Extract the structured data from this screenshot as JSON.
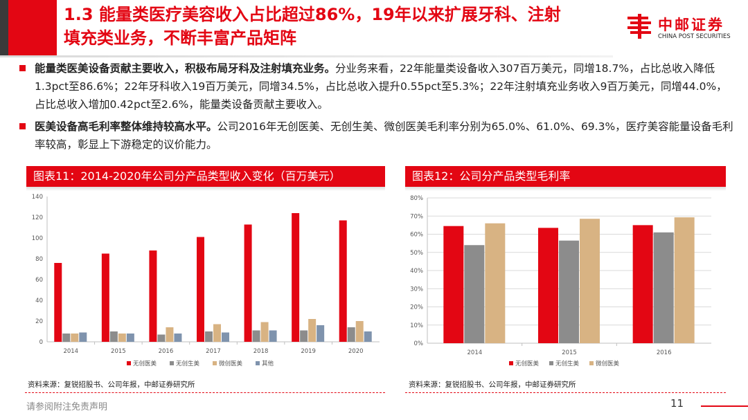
{
  "header": {
    "title_line1": "1.3 能量类医疗美容收入占比超过86%，19年以来扩展牙科、注射",
    "title_line2": "填充类业务，不断丰富产品矩阵",
    "logo_cn": "中邮证券",
    "logo_en": "CHINA POST SECURITIES",
    "accent_color": "#e30613"
  },
  "bullets": [
    {
      "bold": "能量类医美设备贡献主要收入，积极布局牙科及注射填充业务。",
      "text": "分业务来看，22年能量类设备收入307百万美元，同增18.7%，占比总收入降低1.3pct至86.6%；22年牙科收入19百万美元，同增34.5%，占比总收入提升0.55pct至5.3%；22年注射填充业务收入9百万美元，同增44.0%，占比总收入增加0.42pct至2.6%，能量类设备贡献主要收入。"
    },
    {
      "bold": "医美设备高毛利率整体维持较高水平。",
      "text": "公司2016年无创医美、无创生美、微创医美毛利率分别为65.0%、61.0%、69.3%，医疗美容能量设备毛利率较高，彰显上下游稳定的议价能力。"
    }
  ],
  "chart_data": [
    {
      "type": "bar",
      "title": "图表11：2014-2020年公司分产品类型收入变化（百万美元）",
      "categories": [
        "2014",
        "2015",
        "2016",
        "2017",
        "2018",
        "2019",
        "2020"
      ],
      "series": [
        {
          "name": "无创医美",
          "color": "#e30613",
          "values": [
            76,
            85,
            88,
            101,
            113,
            124,
            117
          ]
        },
        {
          "name": "无创生美",
          "color": "#8c8c8c",
          "values": [
            8,
            10,
            7,
            10,
            11,
            11,
            14
          ]
        },
        {
          "name": "微创医美",
          "color": "#d8b383",
          "values": [
            8,
            8,
            14,
            17,
            19,
            22,
            20
          ]
        },
        {
          "name": "其他",
          "color": "#7f93ad",
          "values": [
            9,
            8,
            8,
            9,
            11,
            16,
            10
          ]
        }
      ],
      "ylim": [
        0,
        140
      ],
      "yticks": [
        "0",
        "20",
        "40",
        "60",
        "80",
        "100",
        "120",
        "140"
      ],
      "grid": false,
      "legend": "bottom",
      "source": "资料来源：复锐招股书、公司年报，中邮证券研究所"
    },
    {
      "type": "bar",
      "title": "图表12：公司分产品类型毛利率",
      "categories": [
        "2014",
        "2015",
        "2016"
      ],
      "series": [
        {
          "name": "无创医美",
          "color": "#e30613",
          "values": [
            64.5,
            63.5,
            65.0
          ]
        },
        {
          "name": "无创生美",
          "color": "#8c8c8c",
          "values": [
            54.0,
            56.5,
            61.0
          ]
        },
        {
          "name": "微创医美",
          "color": "#d8b383",
          "values": [
            66.0,
            68.5,
            69.3
          ]
        }
      ],
      "ylim": [
        0,
        80
      ],
      "yticks": [
        "0%",
        "10%",
        "20%",
        "30%",
        "40%",
        "50%",
        "60%",
        "70%",
        "80%"
      ],
      "grid": true,
      "legend": "bottom",
      "source": "资料来源：复锐招股书、公司年报，中邮证券研究所"
    }
  ],
  "footer": {
    "note": "请参阅附注免责声明",
    "page": "11"
  }
}
